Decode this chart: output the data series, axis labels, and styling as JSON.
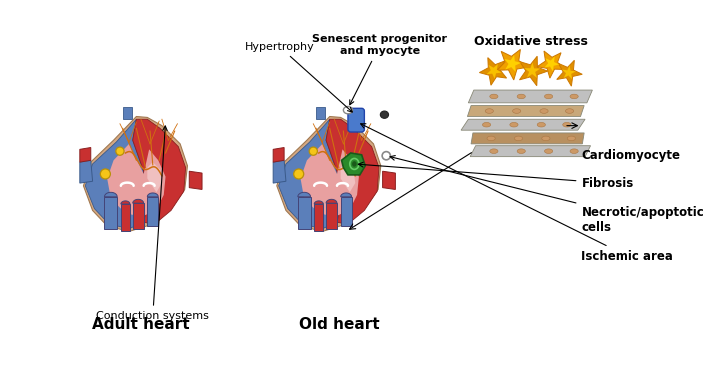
{
  "adult_heart_label": "Adult heart",
  "old_heart_label": "Old heart",
  "oxidative_stress_label": "Oxidative stress",
  "cardiomyocyte_label": "Cardiomyocyte",
  "fibrosis_label": "Fibrosis",
  "necrotic_label": "Necrotic/apoptotic\ncells",
  "ischemic_label": "Ischemic area",
  "hypertrophy_label": "Hypertrophy",
  "senescent_label": "Senescent progenitor\nand myocyte",
  "conduction_label": "Conduction systems",
  "bg_color": "#ffffff",
  "heart_skin": "#d4a882",
  "heart_blue": "#5b7fba",
  "heart_darkblue": "#3d5a8a",
  "heart_red": "#c83030",
  "heart_darkred": "#8a2020",
  "heart_pink": "#e8a0a0",
  "heart_lightpink": "#f0c0c0",
  "vessel_blue": "#4a6fa5",
  "vessel_red": "#cc2222",
  "conduction_orange": "#d07010",
  "yellow_node": "#f5c518",
  "fibrosis_green": "#2a8a2a",
  "ischemic_blue": "#4a7acc",
  "tissue_tan": "#c8a87a",
  "tissue_gray": "#c0c0c0",
  "tissue_tan2": "#b89060",
  "star_orange": "#f0a000",
  "star_yellow": "#f8d000",
  "star_inner": "#ffe060"
}
